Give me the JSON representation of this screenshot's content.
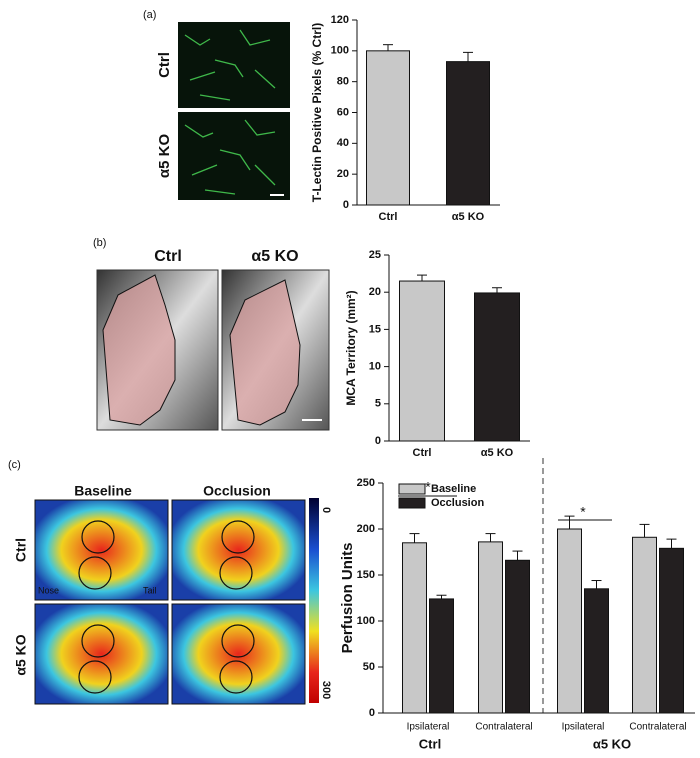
{
  "panels": [
    {
      "label": "(a)",
      "rows": [
        "Ctrl",
        "α5 KO"
      ]
    },
    {
      "label": "(b)",
      "columns": [
        "Ctrl",
        "α5 KO"
      ]
    },
    {
      "label": "(c)",
      "columns": [
        "Baseline",
        "Occlusion"
      ],
      "rows": [
        "Ctrl",
        "α5 KO"
      ],
      "image_labels": [
        "Nose",
        "Tail"
      ],
      "colorbar": [
        "0",
        "300"
      ]
    }
  ],
  "chart_data": [
    {
      "type": "bar",
      "ylabel": "T-Lectin Positive Pixels (% Ctrl)",
      "categories": [
        "Ctrl",
        "α5 KO"
      ],
      "values": [
        100,
        93
      ],
      "errors": [
        4,
        6
      ],
      "colors": [
        "#c8c8c8",
        "#231f20"
      ],
      "ylim": [
        0,
        120
      ],
      "yticks": [
        0,
        20,
        40,
        60,
        80,
        100,
        120
      ]
    },
    {
      "type": "bar",
      "ylabel": "MCA Territory (mm²)",
      "categories": [
        "Ctrl",
        "α5 KO"
      ],
      "values": [
        21.5,
        19.9
      ],
      "errors": [
        0.8,
        0.7
      ],
      "colors": [
        "#c8c8c8",
        "#231f20"
      ],
      "ylim": [
        0,
        25
      ],
      "yticks": [
        0,
        5,
        10,
        15,
        20,
        25
      ]
    },
    {
      "type": "grouped_bar",
      "ylabel": "Perfusion Units",
      "categories": [
        "Ipsilateral",
        "Contralateral",
        "Ipsilateral",
        "Contralateral"
      ],
      "groups": [
        "Ctrl",
        "α5 KO"
      ],
      "series": [
        {
          "name": "Baseline",
          "color": "#c8c8c8",
          "values": [
            185,
            186,
            200,
            191
          ],
          "errors": [
            10,
            9,
            14,
            14
          ]
        },
        {
          "name": "Occlusion",
          "color": "#231f20",
          "values": [
            124,
            166,
            135,
            179
          ],
          "errors": [
            4,
            10,
            9,
            10
          ]
        }
      ],
      "annotations": [
        "*",
        "*"
      ],
      "legend": "upper left",
      "ylim": [
        0,
        250
      ],
      "yticks": [
        0,
        50,
        100,
        150,
        200,
        250
      ]
    }
  ]
}
